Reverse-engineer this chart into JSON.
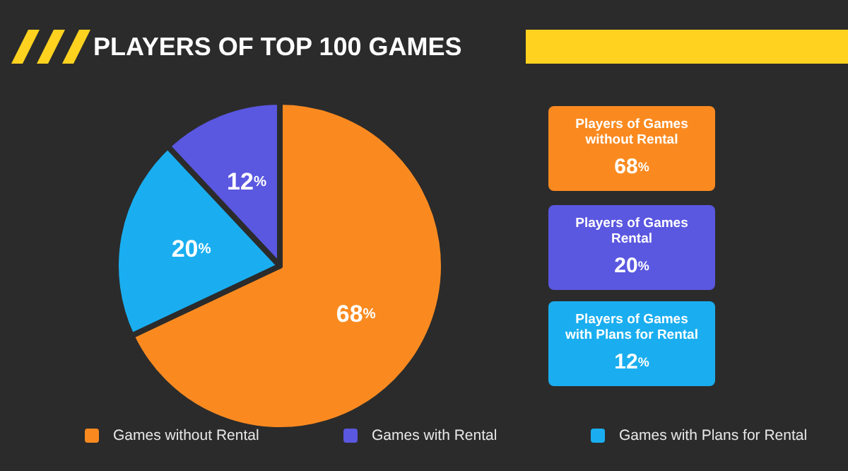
{
  "chart_data": {
    "type": "pie",
    "title": "PLAYERS OF TOP 100 GAMES",
    "categories": [
      "Games without Rental",
      "Games with Rental",
      "Games with Plans for Rental"
    ],
    "values": [
      68,
      12,
      20
    ],
    "colors": [
      "#fa8a20",
      "#5a57e0",
      "#1aaef0"
    ],
    "value_labels": [
      "68%",
      "12%",
      "20%"
    ],
    "legend": "bottom",
    "annotations": [
      "Players of Games\nwithout Rental\n68%",
      "Players of Games\nRental\n20%",
      "Players of Games\nwith Plans for Rental\n12%"
    ]
  }
}
